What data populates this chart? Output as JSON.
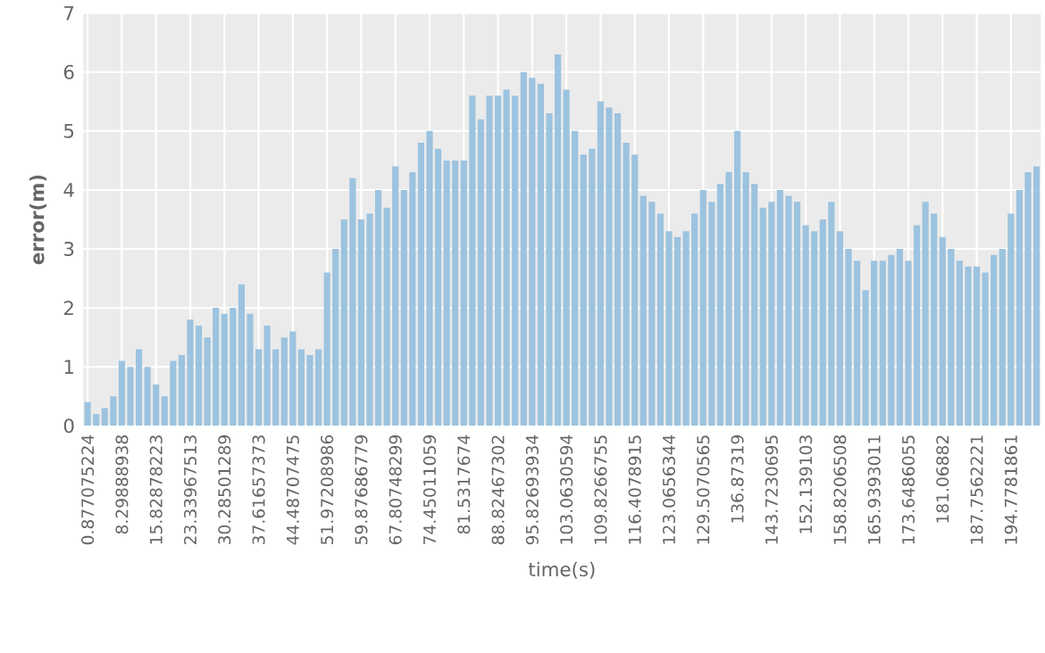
{
  "chart_data": {
    "type": "bar",
    "xlabel": "time(s)",
    "ylabel": "error(m)",
    "categories": [
      "0.877075224",
      null,
      null,
      null,
      "8.29888938",
      null,
      null,
      null,
      "15.82878223",
      null,
      null,
      null,
      "23.33967513",
      null,
      null,
      null,
      "30.28501289",
      null,
      null,
      null,
      "37.61657373",
      null,
      null,
      null,
      "44.48707475",
      null,
      null,
      null,
      "51.97208986",
      null,
      null,
      null,
      "59.87686779",
      null,
      null,
      null,
      "67.80748299",
      null,
      null,
      null,
      "74.45011059",
      null,
      null,
      null,
      "81.5317674",
      null,
      null,
      null,
      "88.82467302",
      null,
      null,
      null,
      "95.82693934",
      null,
      null,
      null,
      "103.0630594",
      null,
      null,
      null,
      "109.8266755",
      null,
      null,
      null,
      "116.4078915",
      null,
      null,
      null,
      "123.0656344",
      null,
      null,
      null,
      "129.5070565",
      null,
      null,
      null,
      "136.87319",
      null,
      null,
      null,
      "143.7230695",
      null,
      null,
      null,
      "152.139103",
      null,
      null,
      null,
      "158.8206508",
      null,
      null,
      null,
      "165.9393011",
      null,
      null,
      null,
      "173.6486055",
      null,
      null,
      null,
      "181.06882",
      null,
      null,
      null,
      "187.7562221",
      null,
      null,
      null,
      "194.7781861",
      null,
      null,
      null
    ],
    "values": [
      0.4,
      0.2,
      0.3,
      0.5,
      1.1,
      1.0,
      1.3,
      1.0,
      0.7,
      0.5,
      1.1,
      1.2,
      1.8,
      1.7,
      1.5,
      2.0,
      1.9,
      2.0,
      2.4,
      1.9,
      1.3,
      1.7,
      1.3,
      1.5,
      1.6,
      1.3,
      1.2,
      1.3,
      2.6,
      3.0,
      3.5,
      4.2,
      3.5,
      3.6,
      4.0,
      3.7,
      4.4,
      4.0,
      4.3,
      4.8,
      5.0,
      4.7,
      4.5,
      4.5,
      4.5,
      5.6,
      5.2,
      5.6,
      5.6,
      5.7,
      5.6,
      6.0,
      5.9,
      5.8,
      5.3,
      6.3,
      5.7,
      5.0,
      4.6,
      4.7,
      5.5,
      5.4,
      5.3,
      4.8,
      4.6,
      3.9,
      3.8,
      3.6,
      3.3,
      3.2,
      3.3,
      3.6,
      4.0,
      3.8,
      4.1,
      4.3,
      5.0,
      4.3,
      4.1,
      3.7,
      3.8,
      4.0,
      3.9,
      3.8,
      3.4,
      3.3,
      3.5,
      3.8,
      3.3,
      3.0,
      2.8,
      2.3,
      2.8,
      2.8,
      2.9,
      3.0,
      2.8,
      3.4,
      3.8,
      3.6,
      3.2,
      3.0,
      2.8,
      2.7,
      2.7,
      2.6,
      2.9,
      3.0,
      3.6,
      4.0,
      4.3,
      4.4
    ],
    "color": "#9cc3df",
    "ylim": [
      0,
      7
    ],
    "yticks": [
      0,
      1,
      2,
      3,
      4,
      5,
      6,
      7
    ],
    "grid": true
  }
}
